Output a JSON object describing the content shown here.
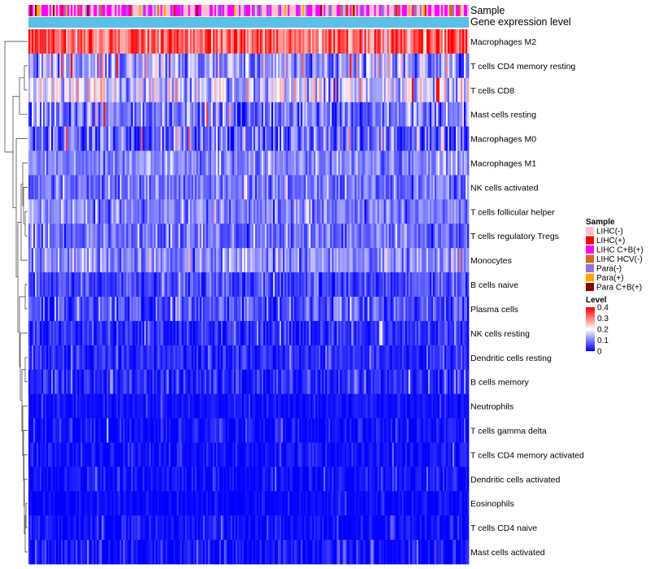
{
  "chart_data": {
    "type": "heatmap",
    "title": "",
    "annotations": [
      {
        "label": "Sample",
        "kind": "categorical"
      },
      {
        "label": "Gene expression level",
        "kind": "constant",
        "color": "#5bc0e8"
      }
    ],
    "rows": [
      {
        "name": "Macrophages M2",
        "mean": 0.33,
        "spread": 0.1
      },
      {
        "name": "T cells CD4 memory resting",
        "mean": 0.12,
        "spread": 0.1
      },
      {
        "name": "T cells CD8",
        "mean": 0.16,
        "spread": 0.11
      },
      {
        "name": "Mast cells resting",
        "mean": 0.09,
        "spread": 0.09
      },
      {
        "name": "Macrophages M0",
        "mean": 0.08,
        "spread": 0.1
      },
      {
        "name": "Macrophages M1",
        "mean": 0.1,
        "spread": 0.05
      },
      {
        "name": "NK cells activated",
        "mean": 0.09,
        "spread": 0.06
      },
      {
        "name": "T cells follicular helper",
        "mean": 0.1,
        "spread": 0.06
      },
      {
        "name": "T cells regulatory  Tregs",
        "mean": 0.08,
        "spread": 0.06
      },
      {
        "name": "Monocytes",
        "mean": 0.11,
        "spread": 0.06
      },
      {
        "name": "B cells naive",
        "mean": 0.05,
        "spread": 0.05
      },
      {
        "name": "Plasma cells",
        "mean": 0.06,
        "spread": 0.07
      },
      {
        "name": "NK cells resting",
        "mean": 0.03,
        "spread": 0.05
      },
      {
        "name": "Dendritic cells resting",
        "mean": 0.03,
        "spread": 0.04
      },
      {
        "name": "B cells memory",
        "mean": 0.03,
        "spread": 0.05
      },
      {
        "name": "Neutrophils",
        "mean": 0.01,
        "spread": 0.02
      },
      {
        "name": "T cells gamma delta",
        "mean": 0.01,
        "spread": 0.04
      },
      {
        "name": "T cells CD4 memory activated",
        "mean": 0.01,
        "spread": 0.03
      },
      {
        "name": "Dendritic cells activated",
        "mean": 0.01,
        "spread": 0.03
      },
      {
        "name": "Eosinophils",
        "mean": 0.005,
        "spread": 0.02
      },
      {
        "name": "T cells CD4 naive",
        "mean": 0.01,
        "spread": 0.03
      },
      {
        "name": "Mast cells activated",
        "mean": 0.015,
        "spread": 0.05
      }
    ],
    "n_columns": 270,
    "sample_legend": {
      "title": "Sample",
      "items": [
        {
          "label": "LIHC(-)",
          "color": "#ffc0cb"
        },
        {
          "label": "LIHC(+)",
          "color": "#ff0000"
        },
        {
          "label": "LIHC C+B(+)",
          "color": "#ff00ff"
        },
        {
          "label": "LIHC HCV(-)",
          "color": "#d2691e"
        },
        {
          "label": "Para(-)",
          "color": "#9370db"
        },
        {
          "label": "Para(+)",
          "color": "#ffa500"
        },
        {
          "label": "Para C+B(+)",
          "color": "#800000"
        }
      ]
    },
    "level_legend": {
      "title": "Level",
      "ticks": [
        "0.4",
        "0.3",
        "0.2",
        "0.1",
        "0"
      ],
      "range": [
        0,
        0.4
      ],
      "colors": [
        "#0000ff",
        "#ffffff",
        "#ff0000"
      ]
    }
  }
}
